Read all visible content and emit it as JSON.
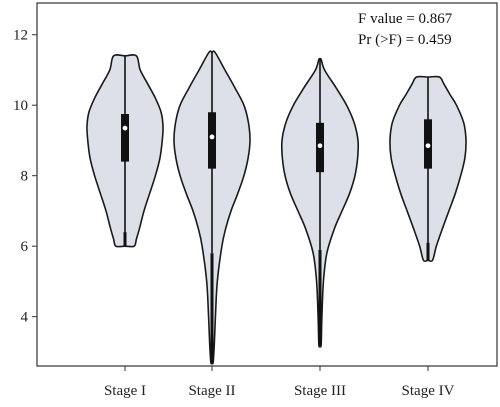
{
  "chart_data": {
    "type": "violin",
    "categories": [
      "Stage I",
      "Stage II",
      "Stage III",
      "Stage IV"
    ],
    "ylim": [
      2.6,
      12.9
    ],
    "yticks": [
      4,
      6,
      8,
      10,
      12
    ],
    "annotations": [
      "F value = 0.867",
      "Pr (>F) = 0.459"
    ],
    "violin_color": "#dde0e8",
    "series": [
      {
        "category": "Stage I",
        "min": 6.0,
        "max": 11.4,
        "whisker_low": 6.4,
        "whisker_high": 11.4,
        "q1": 8.4,
        "median": 9.35,
        "q3": 9.75,
        "density": [
          [
            6.0,
            0.24
          ],
          [
            6.2,
            0.3
          ],
          [
            6.5,
            0.38
          ],
          [
            7.0,
            0.5
          ],
          [
            7.5,
            0.65
          ],
          [
            8.0,
            0.8
          ],
          [
            8.5,
            0.92
          ],
          [
            9.0,
            0.98
          ],
          [
            9.4,
            1.0
          ],
          [
            9.8,
            0.95
          ],
          [
            10.2,
            0.8
          ],
          [
            10.6,
            0.6
          ],
          [
            11.0,
            0.4
          ],
          [
            11.4,
            0.3
          ]
        ]
      },
      {
        "category": "Stage II",
        "min": 2.7,
        "max": 11.5,
        "whisker_low": 5.8,
        "whisker_high": 11.5,
        "q1": 8.2,
        "median": 9.1,
        "q3": 9.8,
        "density": [
          [
            2.7,
            0.03
          ],
          [
            3.2,
            0.06
          ],
          [
            4.0,
            0.09
          ],
          [
            5.0,
            0.14
          ],
          [
            6.0,
            0.26
          ],
          [
            6.5,
            0.36
          ],
          [
            7.0,
            0.5
          ],
          [
            7.5,
            0.68
          ],
          [
            8.0,
            0.84
          ],
          [
            8.5,
            0.95
          ],
          [
            9.0,
            1.0
          ],
          [
            9.5,
            0.96
          ],
          [
            10.0,
            0.84
          ],
          [
            10.5,
            0.6
          ],
          [
            11.0,
            0.34
          ],
          [
            11.5,
            0.08
          ]
        ]
      },
      {
        "category": "Stage III",
        "min": 3.2,
        "max": 11.3,
        "whisker_low": 5.9,
        "whisker_high": 11.3,
        "q1": 8.1,
        "median": 8.85,
        "q3": 9.5,
        "density": [
          [
            3.2,
            0.03
          ],
          [
            4.0,
            0.05
          ],
          [
            5.0,
            0.09
          ],
          [
            5.8,
            0.18
          ],
          [
            6.5,
            0.38
          ],
          [
            7.0,
            0.58
          ],
          [
            7.5,
            0.78
          ],
          [
            8.0,
            0.92
          ],
          [
            8.5,
            0.99
          ],
          [
            9.0,
            1.0
          ],
          [
            9.5,
            0.9
          ],
          [
            10.0,
            0.7
          ],
          [
            10.5,
            0.42
          ],
          [
            11.0,
            0.12
          ],
          [
            11.3,
            0.03
          ]
        ]
      },
      {
        "category": "Stage IV",
        "min": 5.6,
        "max": 10.8,
        "whisker_low": 6.1,
        "whisker_high": 10.8,
        "q1": 8.2,
        "median": 8.85,
        "q3": 9.6,
        "density": [
          [
            5.6,
            0.12
          ],
          [
            6.0,
            0.22
          ],
          [
            6.5,
            0.38
          ],
          [
            7.0,
            0.55
          ],
          [
            7.5,
            0.72
          ],
          [
            8.0,
            0.86
          ],
          [
            8.5,
            0.97
          ],
          [
            9.0,
            1.0
          ],
          [
            9.5,
            0.94
          ],
          [
            10.0,
            0.75
          ],
          [
            10.3,
            0.58
          ],
          [
            10.6,
            0.42
          ],
          [
            10.8,
            0.3
          ]
        ]
      }
    ]
  }
}
